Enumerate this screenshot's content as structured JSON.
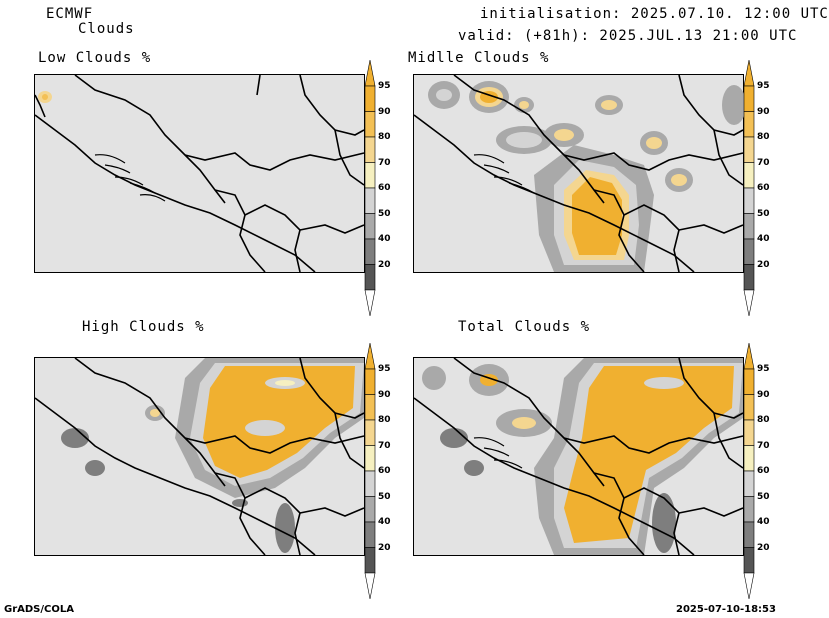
{
  "header": {
    "model": "ECMWF",
    "product": "Clouds",
    "init": "initialisation: 2025.07.10. 12:00 UTC",
    "valid": "valid: (+81h): 2025.JUL.13 21:00 UTC"
  },
  "panels": [
    {
      "id": "low",
      "title": "Low Clouds %"
    },
    {
      "id": "middle",
      "title": "Midlle Clouds %"
    },
    {
      "id": "high",
      "title": "High Clouds %"
    },
    {
      "id": "total",
      "title": "Total Clouds %"
    }
  ],
  "colorbar": {
    "labels": [
      "95",
      "90",
      "80",
      "70",
      "60",
      "50",
      "40",
      "20"
    ],
    "colors": [
      "#f0b030",
      "#f3c055",
      "#f4d690",
      "#f6f0c0",
      "#d4d4d4",
      "#a9a9a9",
      "#7e7e7e",
      "#555555"
    ]
  },
  "footer": {
    "left": "GrADS/COLA",
    "right": "2025-07-10-18:53"
  }
}
